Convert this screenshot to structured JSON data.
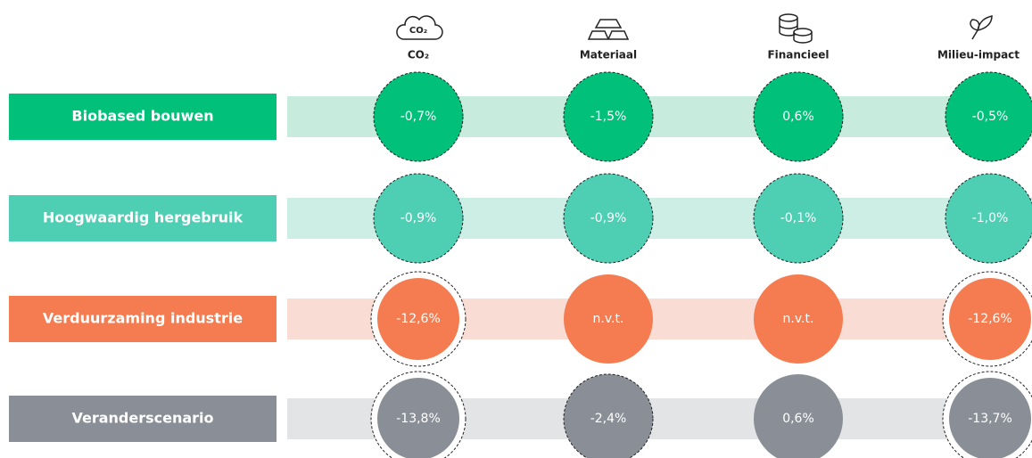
{
  "columns": [
    "CO₂",
    "Materiaal",
    "Financieel",
    "Milieu-impact"
  ],
  "rows": [
    {
      "label": "Biobased bouwen",
      "values": [
        "-0,7%",
        "-1,5%",
        "0,6%",
        "-0,5%"
      ]
    },
    {
      "label": "Hoogwaardig hergebruik",
      "values": [
        "-0,9%",
        "-0,9%",
        "-0,1%",
        "-1,0%"
      ]
    },
    {
      "label": "Verduurzaming industrie",
      "values": [
        "-12,6%",
        "n.v.t.",
        "n.v.t.",
        "-12,6%"
      ]
    },
    {
      "label": "Veranderscenario",
      "values": [
        "-13,8%",
        "-2,4%",
        "0,6%",
        "-13,7%"
      ]
    }
  ]
}
